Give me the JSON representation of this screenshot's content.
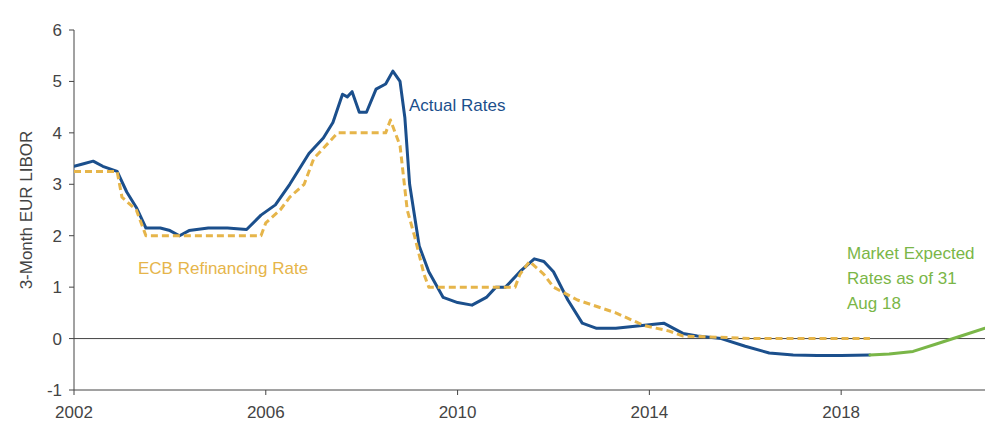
{
  "chart_data": {
    "type": "line",
    "y_label": "3-Month EUR LIBOR",
    "xlim": [
      2002,
      2021
    ],
    "xticks": [
      2002,
      2006,
      2010,
      2014,
      2018
    ],
    "ylim": [
      -1,
      6
    ],
    "yticks": [
      -1,
      0,
      1,
      2,
      3,
      4,
      5,
      6
    ],
    "grid": false,
    "series": [
      {
        "name": "Actual Rates",
        "color": "#1b4f8c",
        "line_style": "solid",
        "x": [
          2002.0,
          2002.2,
          2002.4,
          2002.6,
          2002.9,
          2003.1,
          2003.3,
          2003.5,
          2003.8,
          2004.0,
          2004.2,
          2004.4,
          2004.8,
          2005.2,
          2005.6,
          2005.9,
          2006.2,
          2006.5,
          2006.9,
          2007.2,
          2007.4,
          2007.6,
          2007.7,
          2007.8,
          2007.95,
          2008.1,
          2008.3,
          2008.5,
          2008.65,
          2008.8,
          2008.9,
          2009.0,
          2009.2,
          2009.4,
          2009.7,
          2010.0,
          2010.3,
          2010.6,
          2010.8,
          2011.0,
          2011.3,
          2011.6,
          2011.8,
          2012.0,
          2012.3,
          2012.6,
          2012.9,
          2013.3,
          2013.8,
          2014.3,
          2014.7,
          2015.0,
          2015.5,
          2016.0,
          2016.5,
          2017.0,
          2017.5,
          2018.0,
          2018.6
        ],
        "values": [
          3.35,
          3.4,
          3.45,
          3.35,
          3.25,
          2.85,
          2.55,
          2.15,
          2.15,
          2.1,
          2.0,
          2.1,
          2.15,
          2.15,
          2.12,
          2.4,
          2.6,
          3.0,
          3.6,
          3.9,
          4.2,
          4.75,
          4.7,
          4.8,
          4.4,
          4.4,
          4.85,
          4.95,
          5.2,
          5.0,
          4.3,
          3.0,
          1.8,
          1.3,
          0.8,
          0.7,
          0.65,
          0.8,
          1.0,
          1.0,
          1.3,
          1.55,
          1.5,
          1.3,
          0.75,
          0.3,
          0.2,
          0.2,
          0.25,
          0.3,
          0.1,
          0.05,
          0.0,
          -0.15,
          -0.28,
          -0.32,
          -0.33,
          -0.33,
          -0.32
        ]
      },
      {
        "name": "ECB Refinancing Rate",
        "color": "#e6b54a",
        "line_style": "dashed",
        "x": [
          2002.0,
          2002.9,
          2003.0,
          2003.3,
          2003.5,
          2005.9,
          2006.0,
          2006.3,
          2006.5,
          2006.8,
          2007.0,
          2007.5,
          2008.5,
          2008.6,
          2008.8,
          2008.95,
          2009.1,
          2009.3,
          2009.4,
          2011.2,
          2011.3,
          2011.5,
          2011.8,
          2012.0,
          2012.5,
          2013.3,
          2013.9,
          2014.4,
          2014.7,
          2016.2,
          2018.6
        ],
        "values": [
          3.25,
          3.25,
          2.75,
          2.5,
          2.0,
          2.0,
          2.25,
          2.5,
          2.75,
          3.0,
          3.5,
          4.0,
          4.0,
          4.25,
          3.75,
          2.5,
          2.0,
          1.25,
          1.0,
          1.0,
          1.25,
          1.5,
          1.25,
          1.0,
          0.75,
          0.5,
          0.25,
          0.15,
          0.05,
          0.0,
          0.0
        ]
      },
      {
        "name": "Market Expected Rates as of 31 Aug 18",
        "color": "#7ab648",
        "line_style": "solid",
        "x": [
          2018.6,
          2019.0,
          2019.5,
          2020.0,
          2020.5,
          2021.0
        ],
        "values": [
          -0.32,
          -0.3,
          -0.25,
          -0.1,
          0.05,
          0.2
        ]
      }
    ]
  }
}
